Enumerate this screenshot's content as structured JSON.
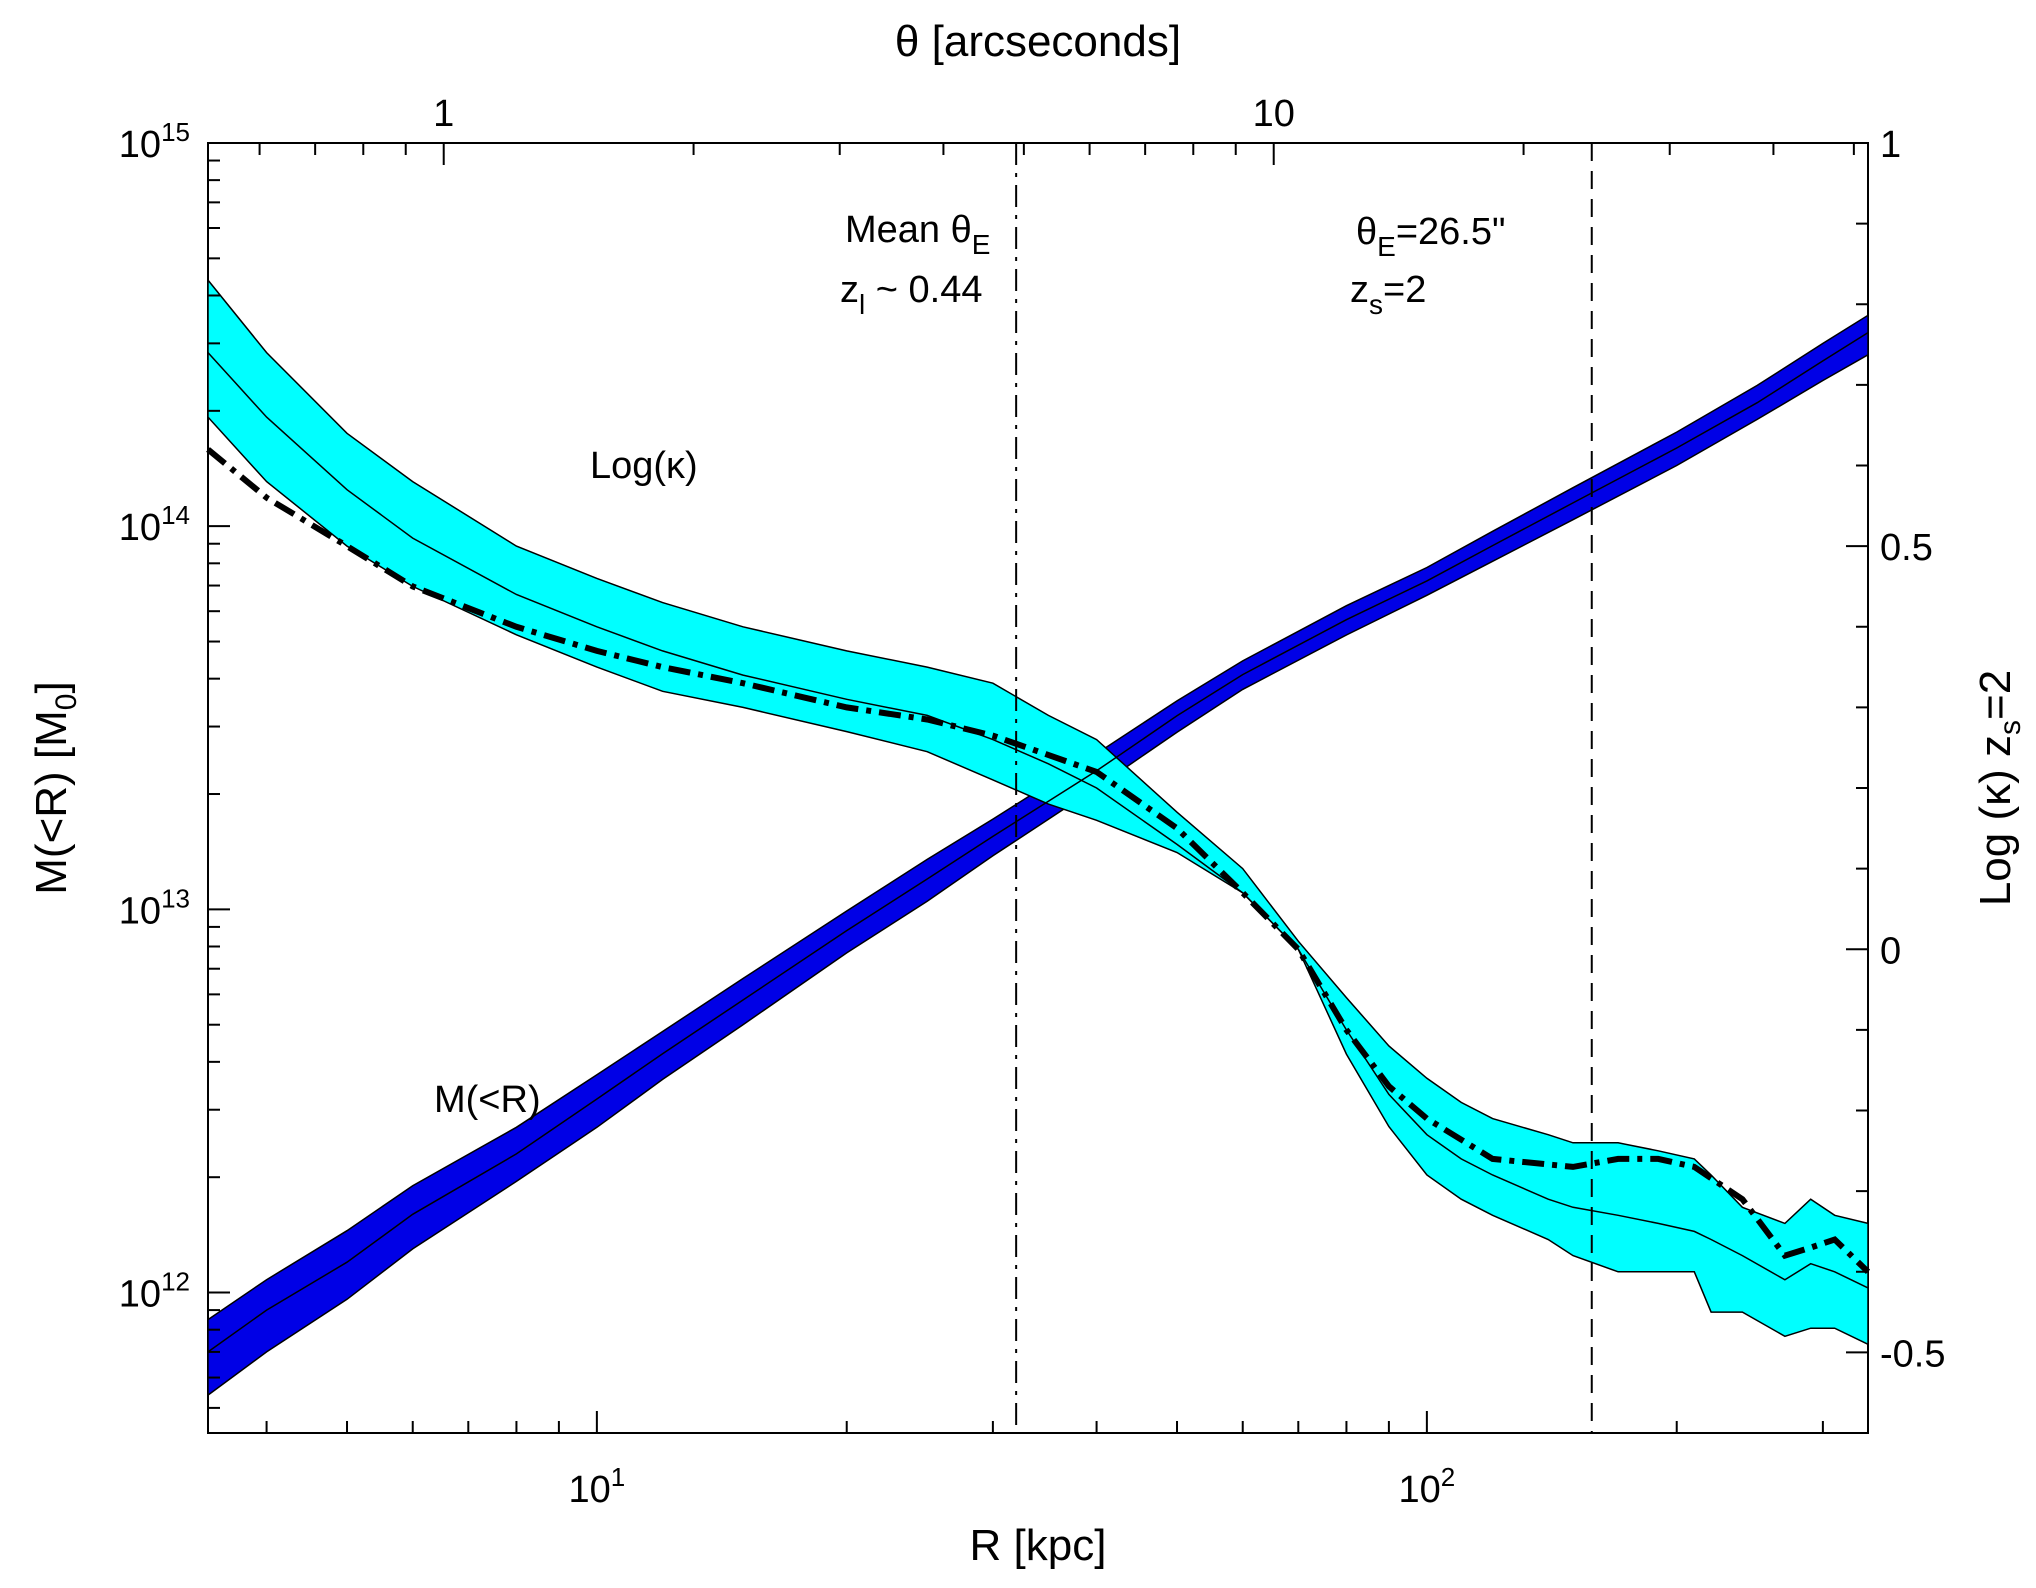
{
  "chart_data": {
    "type": "area",
    "xlabel": "R [kpc]",
    "xlabel_top": "θ [arcseconds]",
    "ylabel_left": {
      "base": "M(<R) [M",
      "sub": "0",
      "end": "]"
    },
    "ylabel_right": {
      "base": "Log (κ) z",
      "sub": "s",
      "end": "=2"
    },
    "x_axis": {
      "scale": "log",
      "range": [
        3.4,
        340
      ],
      "ticks": [
        {
          "value": 10,
          "base": "10",
          "exp": "1"
        },
        {
          "value": 100,
          "base": "10",
          "exp": "2"
        }
      ]
    },
    "x_top_axis": {
      "scale": "log",
      "range": [
        0.52,
        52
      ],
      "ticks": [
        {
          "value": 1,
          "label": "1"
        },
        {
          "value": 10,
          "label": "10"
        }
      ]
    },
    "y_left_axis": {
      "scale": "log",
      "range": [
        430000000000.0,
        1000000000000000.0
      ],
      "ticks": [
        {
          "value": 1000000000000.0,
          "base": "10",
          "exp": "12"
        },
        {
          "value": 10000000000000.0,
          "base": "10",
          "exp": "13"
        },
        {
          "value": 100000000000000.0,
          "base": "10",
          "exp": "14"
        },
        {
          "value": 1000000000000000.0,
          "base": "10",
          "exp": "15"
        }
      ]
    },
    "y_right_axis": {
      "scale": "linear",
      "range": [
        -0.6,
        1.0
      ],
      "ticks": [
        {
          "value": 1,
          "label": "1"
        },
        {
          "value": 0.5,
          "label": "0.5"
        },
        {
          "value": 0,
          "label": "0"
        },
        {
          "value": -0.5,
          "label": "-0.5"
        }
      ]
    },
    "series": [
      {
        "name": "M(<R)",
        "axis": "left",
        "color": "#0000e6",
        "x": [
          3.4,
          4,
          5,
          6,
          8,
          10,
          12,
          15,
          20,
          25,
          30,
          40,
          50,
          60,
          80,
          100,
          120,
          150,
          200,
          250,
          300,
          340
        ],
        "mid": [
          700000000000.0,
          900000000000.0,
          1200000000000.0,
          1600000000000.0,
          2300000000000.0,
          3200000000000.0,
          4200000000000.0,
          5800000000000.0,
          8800000000000.0,
          12000000000000.0,
          15500000000000.0,
          23000000000000.0,
          32000000000000.0,
          41000000000000.0,
          57000000000000.0,
          72000000000000.0,
          89000000000000.0,
          115000000000000.0,
          160000000000000.0,
          210000000000000.0,
          270000000000000.0,
          320000000000000.0
        ],
        "lower": [
          540000000000.0,
          700000000000.0,
          960000000000.0,
          1300000000000.0,
          1950000000000.0,
          2700000000000.0,
          3600000000000.0,
          5000000000000.0,
          7700000000000.0,
          10500000000000.0,
          13800000000000.0,
          20800000000000.0,
          29000000000000.0,
          37500000000000.0,
          52000000000000.0,
          66000000000000.0,
          81000000000000.0,
          104000000000000.0,
          144000000000000.0,
          190000000000000.0,
          240000000000000.0,
          280000000000000.0
        ],
        "upper": [
          850000000000.0,
          1080000000000.0,
          1450000000000.0,
          1900000000000.0,
          2700000000000.0,
          3700000000000.0,
          4800000000000.0,
          6600000000000.0,
          9900000000000.0,
          13500000000000.0,
          17200000000000.0,
          25500000000000.0,
          35000000000000.0,
          44500000000000.0,
          62000000000000.0,
          78000000000000.0,
          97000000000000.0,
          126000000000000.0,
          176000000000000.0,
          233000000000000.0,
          300000000000000.0,
          355000000000000.0
        ]
      },
      {
        "name": "Log(κ)",
        "axis": "right",
        "color": "#00ffff",
        "x": [
          3.4,
          4,
          5,
          6,
          8,
          10,
          12,
          15,
          20,
          25,
          30,
          35,
          40,
          50,
          60,
          70,
          80,
          90,
          100,
          110,
          120,
          140,
          150,
          170,
          190,
          210,
          220,
          240,
          270,
          290,
          310,
          340
        ],
        "mid": [
          0.74,
          0.66,
          0.57,
          0.51,
          0.44,
          0.4,
          0.37,
          0.34,
          0.31,
          0.29,
          0.26,
          0.23,
          0.2,
          0.13,
          0.07,
          0.0,
          -0.1,
          -0.18,
          -0.23,
          -0.26,
          -0.28,
          -0.31,
          -0.32,
          -0.33,
          -0.34,
          -0.35,
          -0.36,
          -0.38,
          -0.41,
          -0.39,
          -0.4,
          -0.42
        ],
        "lower": [
          0.66,
          0.58,
          0.5,
          0.45,
          0.39,
          0.35,
          0.32,
          0.3,
          0.27,
          0.245,
          0.21,
          0.18,
          0.16,
          0.12,
          0.07,
          0.0,
          -0.13,
          -0.22,
          -0.28,
          -0.31,
          -0.33,
          -0.36,
          -0.38,
          -0.4,
          -0.4,
          -0.4,
          -0.45,
          -0.45,
          -0.48,
          -0.47,
          -0.47,
          -0.49
        ],
        "upper": [
          0.83,
          0.74,
          0.64,
          0.58,
          0.5,
          0.46,
          0.43,
          0.4,
          0.37,
          0.35,
          0.33,
          0.29,
          0.26,
          0.17,
          0.1,
          0.01,
          -0.06,
          -0.12,
          -0.16,
          -0.19,
          -0.21,
          -0.23,
          -0.24,
          -0.24,
          -0.25,
          -0.26,
          -0.28,
          -0.32,
          -0.34,
          -0.31,
          -0.33,
          -0.34
        ]
      },
      {
        "name": "Log(κ) reference (dash-dot)",
        "axis": "right",
        "color": "#000000",
        "x": [
          3.4,
          4,
          5,
          6,
          8,
          10,
          12,
          15,
          20,
          25,
          30,
          40,
          50,
          60,
          70,
          80,
          90,
          100,
          120,
          150,
          170,
          190,
          210,
          240,
          270,
          290,
          310,
          340
        ],
        "y": [
          0.62,
          0.56,
          0.5,
          0.45,
          0.4,
          0.37,
          0.35,
          0.33,
          0.3,
          0.285,
          0.265,
          0.22,
          0.15,
          0.07,
          0.0,
          -0.1,
          -0.17,
          -0.21,
          -0.26,
          -0.27,
          -0.26,
          -0.26,
          -0.27,
          -0.31,
          -0.38,
          -0.37,
          -0.36,
          -0.4
        ]
      }
    ],
    "vlines": [
      {
        "x": 32,
        "style": "dash-dot",
        "label": "Mean θE, zl ~ 0.44"
      },
      {
        "x": 158,
        "style": "dashed",
        "label": "θE=26.5\", zs=2"
      }
    ],
    "annotations": {
      "logk_label": "Log(κ)",
      "mass_label": "M(<R)",
      "mean_line1": {
        "pre": "Mean θ",
        "sub": "E"
      },
      "mean_line2": {
        "pre": "z",
        "sub": "l",
        "post": " ~ 0.44"
      },
      "thetaE_line1": {
        "pre": "θ",
        "sub": "E",
        "post": "=26.5\""
      },
      "thetaE_line2": {
        "pre": "z",
        "sub": "s",
        "post": "=2"
      }
    }
  }
}
